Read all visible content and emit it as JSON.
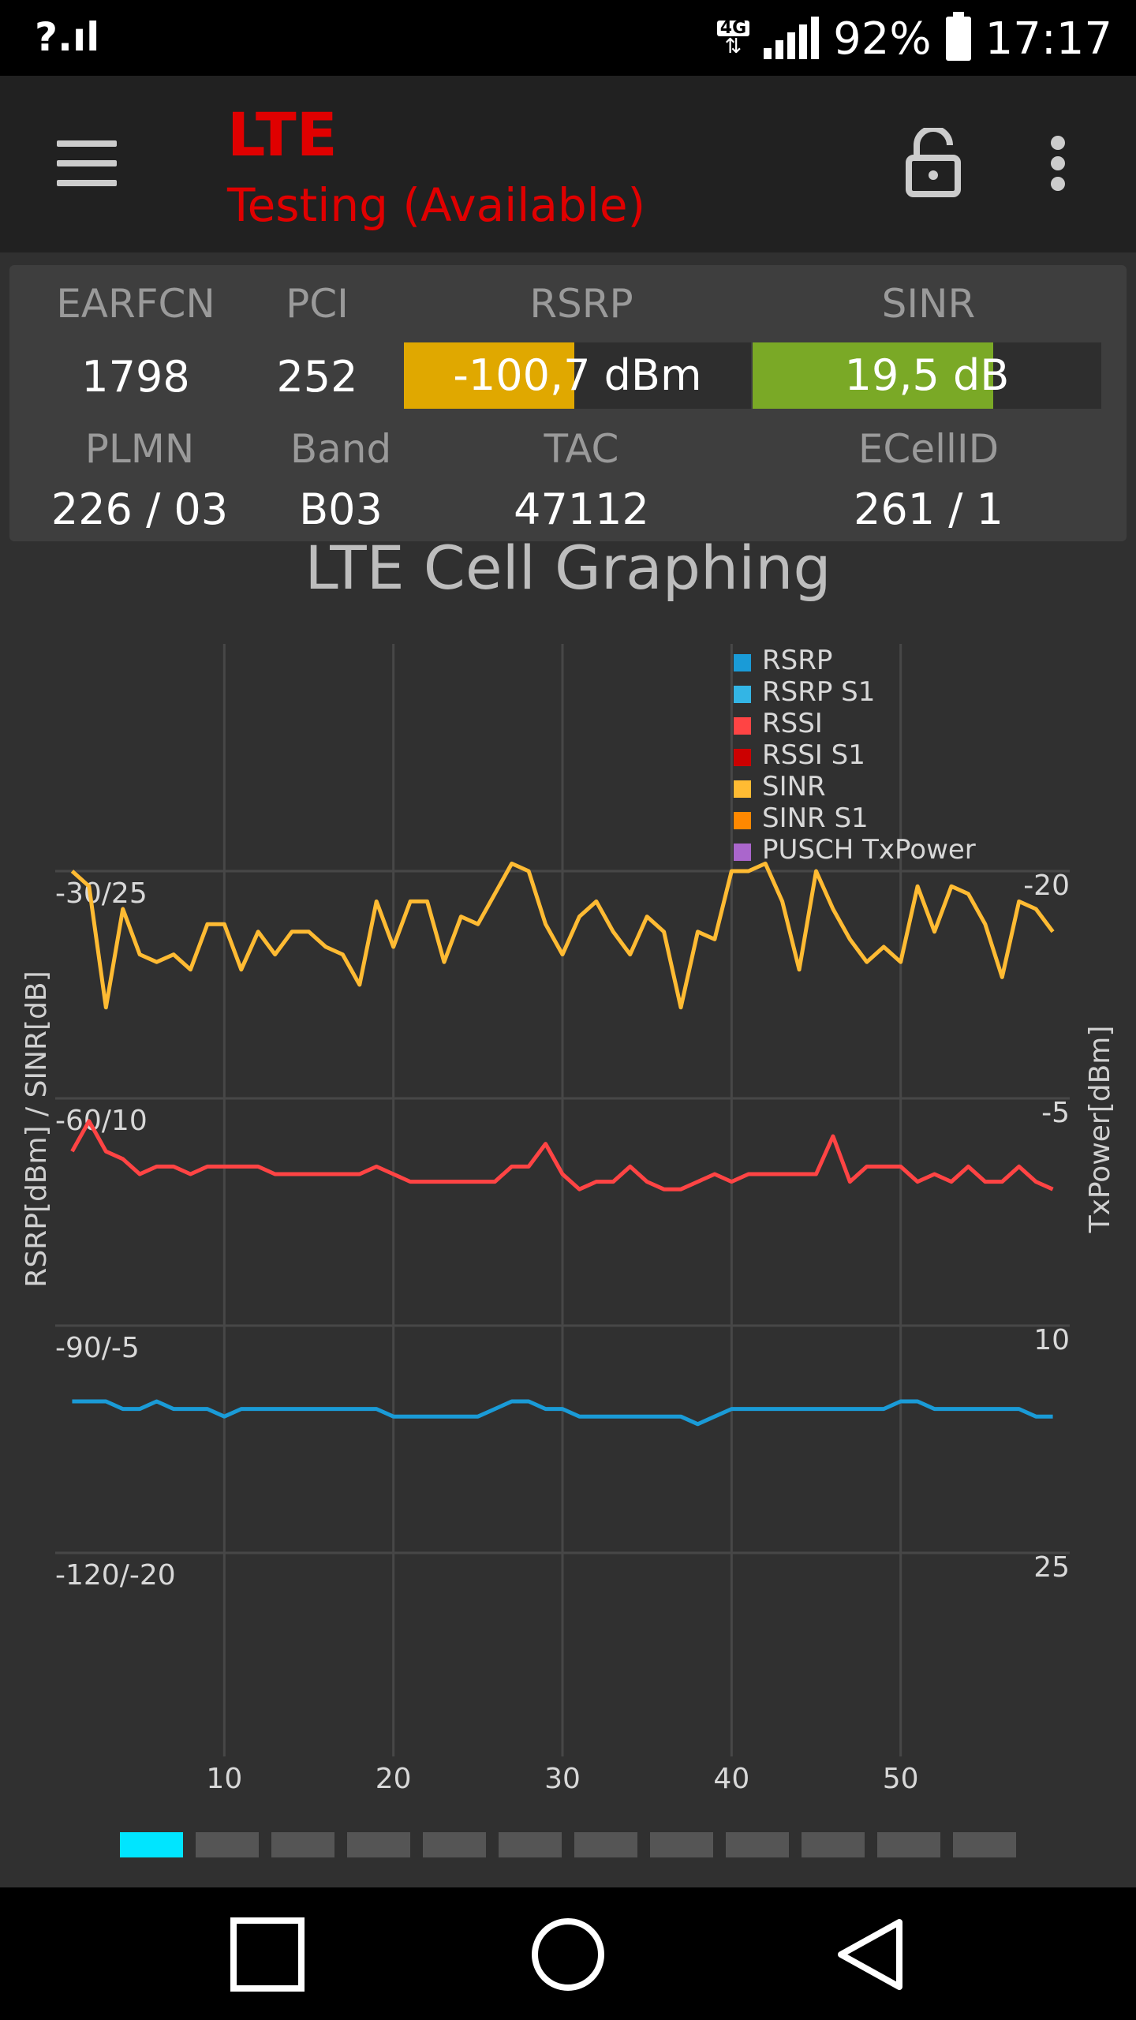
{
  "status_bar": {
    "sim_status": "?.ıl",
    "network_type": "4G",
    "battery_percent": "92%",
    "time": "17:17"
  },
  "app_bar": {
    "title": "LTE",
    "subtitle": "Testing (Available)"
  },
  "cell_info": {
    "earfcn_label": "EARFCN",
    "earfcn": "1798",
    "pci_label": "PCI",
    "pci": "252",
    "rsrp_label": "RSRP",
    "rsrp": "-100,7 dBm",
    "rsrp_level": 0.49,
    "rsrp_color": "#e0a800",
    "sinr_label": "SINR",
    "sinr": "19,5 dB",
    "sinr_level": 0.69,
    "sinr_color": "#7aa926",
    "plmn_label": "PLMN",
    "plmn": "226 / 03",
    "band_label": "Band",
    "band": "B03",
    "tac_label": "TAC",
    "tac": "47112",
    "ecellid_label": "ECellID",
    "ecellid": "261 / 1"
  },
  "chart_data": {
    "type": "line",
    "title": "LTE Cell Graphing",
    "ylabel": "RSRP[dBm] / SINR[dB]",
    "y2label": "TxPower[dBm]",
    "xlim": [
      0,
      60
    ],
    "x_ticks": [
      10,
      20,
      30,
      40,
      50
    ],
    "y_ticks": [
      "-30/25",
      "-60/10",
      "-90/-5",
      "-120/-20"
    ],
    "y_tick_values": [
      -30,
      -60,
      -90,
      -120
    ],
    "ylim": [
      -150,
      0
    ],
    "y2_ticks": [
      "-20",
      "-5",
      "10",
      "25"
    ],
    "grid": true,
    "legend_position": "top-right",
    "legend": [
      {
        "name": "RSRP",
        "color": "#1a9bd7"
      },
      {
        "name": "RSRP S1",
        "color": "#33b5e5"
      },
      {
        "name": "RSSI",
        "color": "#ff4444"
      },
      {
        "name": "RSSI S1",
        "color": "#cc0000"
      },
      {
        "name": "SINR",
        "color": "#ffbb33"
      },
      {
        "name": "SINR S1",
        "color": "#ff8800"
      },
      {
        "name": "PUSCH TxPower",
        "color": "#aa66cc"
      }
    ],
    "series": [
      {
        "name": "SINR",
        "color": "#ffbb33",
        "x": [
          1,
          2,
          3,
          4,
          5,
          6,
          7,
          8,
          9,
          10,
          11,
          12,
          13,
          14,
          15,
          16,
          17,
          18,
          19,
          20,
          21,
          22,
          23,
          24,
          25,
          26,
          27,
          28,
          29,
          30,
          31,
          32,
          33,
          34,
          35,
          36,
          37,
          38,
          39,
          40,
          41,
          42,
          43,
          44,
          45,
          46,
          47,
          48,
          49,
          50,
          51,
          52,
          53,
          54,
          55,
          56,
          57,
          58,
          59
        ],
        "y": [
          -30,
          -32,
          -48,
          -35,
          -41,
          -42,
          -41,
          -43,
          -37,
          -37,
          -43,
          -38,
          -41,
          -38,
          -38,
          -40,
          -41,
          -45,
          -34,
          -40,
          -34,
          -34,
          -42,
          -36,
          -37,
          -33,
          -29,
          -30,
          -37,
          -41,
          -36,
          -34,
          -38,
          -41,
          -36,
          -38,
          -48,
          -38,
          -39,
          -30,
          -30,
          -29,
          -34,
          -43,
          -30,
          -35,
          -39,
          -42,
          -40,
          -42,
          -32,
          -38,
          -32,
          -33,
          -37,
          -44,
          -34,
          -35,
          -38
        ]
      },
      {
        "name": "RSSI",
        "color": "#ff4444",
        "x": [
          1,
          2,
          3,
          4,
          5,
          6,
          7,
          8,
          9,
          10,
          11,
          12,
          13,
          14,
          15,
          16,
          17,
          18,
          19,
          20,
          21,
          22,
          23,
          24,
          25,
          26,
          27,
          28,
          29,
          30,
          31,
          32,
          33,
          34,
          35,
          36,
          37,
          38,
          39,
          40,
          41,
          42,
          43,
          44,
          45,
          46,
          47,
          48,
          49,
          50,
          51,
          52,
          53,
          54,
          55,
          56,
          57,
          58,
          59
        ],
        "y": [
          -67,
          -63,
          -67,
          -68,
          -70,
          -69,
          -69,
          -70,
          -69,
          -69,
          -69,
          -69,
          -70,
          -70,
          -70,
          -70,
          -70,
          -70,
          -69,
          -70,
          -71,
          -71,
          -71,
          -71,
          -71,
          -71,
          -69,
          -69,
          -66,
          -70,
          -72,
          -71,
          -71,
          -69,
          -71,
          -72,
          -72,
          -71,
          -70,
          -71,
          -70,
          -70,
          -70,
          -70,
          -70,
          -65,
          -71,
          -69,
          -69,
          -69,
          -71,
          -70,
          -71,
          -69,
          -71,
          -71,
          -69,
          -71,
          -72
        ]
      },
      {
        "name": "RSRP",
        "color": "#1a9bd7",
        "x": [
          1,
          2,
          3,
          4,
          5,
          6,
          7,
          8,
          9,
          10,
          11,
          12,
          13,
          14,
          15,
          16,
          17,
          18,
          19,
          20,
          21,
          22,
          23,
          24,
          25,
          26,
          27,
          28,
          29,
          30,
          31,
          32,
          33,
          34,
          35,
          36,
          37,
          38,
          39,
          40,
          41,
          42,
          43,
          44,
          45,
          46,
          47,
          48,
          49,
          50,
          51,
          52,
          53,
          54,
          55,
          56,
          57,
          58,
          59
        ],
        "y": [
          -100,
          -100,
          -100,
          -101,
          -101,
          -100,
          -101,
          -101,
          -101,
          -102,
          -101,
          -101,
          -101,
          -101,
          -101,
          -101,
          -101,
          -101,
          -101,
          -102,
          -102,
          -102,
          -102,
          -102,
          -102,
          -101,
          -100,
          -100,
          -101,
          -101,
          -102,
          -102,
          -102,
          -102,
          -102,
          -102,
          -102,
          -103,
          -102,
          -101,
          -101,
          -101,
          -101,
          -101,
          -101,
          -101,
          -101,
          -101,
          -101,
          -100,
          -100,
          -101,
          -101,
          -101,
          -101,
          -101,
          -101,
          -102,
          -102
        ]
      }
    ]
  },
  "pager": {
    "count": 12,
    "active": 0
  }
}
